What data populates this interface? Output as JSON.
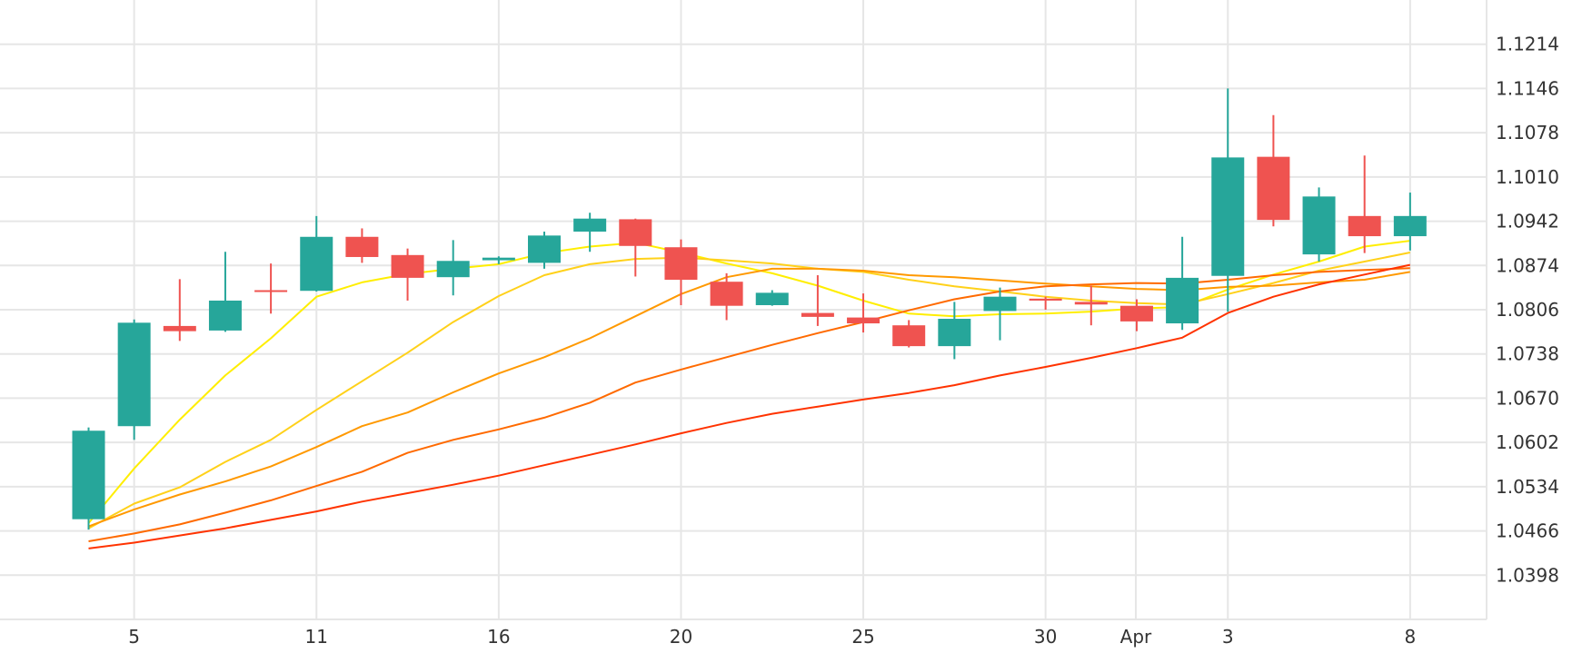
{
  "chart_data": {
    "type": "candlestick",
    "title": "",
    "xlabel": "",
    "ylabel": "",
    "ylim": [
      1.033,
      1.1282
    ],
    "grid": true,
    "x_ticks": [
      {
        "label": "5",
        "index": 1
      },
      {
        "label": "11",
        "index": 5
      },
      {
        "label": "16",
        "index": 9
      },
      {
        "label": "20",
        "index": 13
      },
      {
        "label": "25",
        "index": 17
      },
      {
        "label": "30",
        "index": 21
      },
      {
        "label": "Apr",
        "index": 22.98
      },
      {
        "label": "3",
        "index": 25
      },
      {
        "label": "8",
        "index": 29
      }
    ],
    "y_ticks": [
      "1.1214",
      "1.1146",
      "1.1078",
      "1.1010",
      "1.0942",
      "1.0874",
      "1.0806",
      "1.0738",
      "1.0670",
      "1.0602",
      "1.0534",
      "1.0466",
      "1.0398"
    ],
    "colors": {
      "up": "#26a69a",
      "down": "#ef5350",
      "ma_fast": "#ffee00",
      "ma_2": "#ffd11a",
      "ma_3": "#ff9900",
      "ma_4": "#ff6a00",
      "ma_5": "#ff3300"
    },
    "candles": [
      {
        "open": 1.0484,
        "high": 1.0625,
        "low": 1.0468,
        "close": 1.062
      },
      {
        "open": 1.0627,
        "high": 1.0791,
        "low": 1.0606,
        "close": 1.0786
      },
      {
        "open": 1.0781,
        "high": 1.0853,
        "low": 1.0758,
        "close": 1.0773
      },
      {
        "open": 1.0774,
        "high": 1.0895,
        "low": 1.0772,
        "close": 1.082
      },
      {
        "open": 1.0836,
        "high": 1.0877,
        "low": 1.08,
        "close": 1.0834
      },
      {
        "open": 1.0835,
        "high": 1.095,
        "low": 1.0834,
        "close": 1.0918
      },
      {
        "open": 1.0918,
        "high": 1.0931,
        "low": 1.0878,
        "close": 1.0887
      },
      {
        "open": 1.089,
        "high": 1.09,
        "low": 1.082,
        "close": 1.0855
      },
      {
        "open": 1.0856,
        "high": 1.0913,
        "low": 1.0828,
        "close": 1.0881
      },
      {
        "open": 1.0882,
        "high": 1.0888,
        "low": 1.0876,
        "close": 1.0886
      },
      {
        "open": 1.0878,
        "high": 1.0926,
        "low": 1.0869,
        "close": 1.092
      },
      {
        "open": 1.0926,
        "high": 1.0955,
        "low": 1.0895,
        "close": 1.0946
      },
      {
        "open": 1.0945,
        "high": 1.0946,
        "low": 1.0857,
        "close": 1.0904
      },
      {
        "open": 1.0902,
        "high": 1.0914,
        "low": 1.0813,
        "close": 1.0852
      },
      {
        "open": 1.0849,
        "high": 1.0862,
        "low": 1.079,
        "close": 1.0812
      },
      {
        "open": 1.0813,
        "high": 1.0836,
        "low": 1.0812,
        "close": 1.0832
      },
      {
        "open": 1.0801,
        "high": 1.0859,
        "low": 1.0781,
        "close": 1.0795
      },
      {
        "open": 1.0794,
        "high": 1.0831,
        "low": 1.0771,
        "close": 1.0785
      },
      {
        "open": 1.0782,
        "high": 1.079,
        "low": 1.0748,
        "close": 1.075
      },
      {
        "open": 1.075,
        "high": 1.0818,
        "low": 1.073,
        "close": 1.0792
      },
      {
        "open": 1.0804,
        "high": 1.084,
        "low": 1.0759,
        "close": 1.0826
      },
      {
        "open": 1.0823,
        "high": 1.0826,
        "low": 1.0806,
        "close": 1.082
      },
      {
        "open": 1.0818,
        "high": 1.0843,
        "low": 1.0782,
        "close": 1.0814
      },
      {
        "open": 1.0812,
        "high": 1.0822,
        "low": 1.0773,
        "close": 1.0788
      },
      {
        "open": 1.0785,
        "high": 1.0918,
        "low": 1.0775,
        "close": 1.0855
      },
      {
        "open": 1.0858,
        "high": 1.1146,
        "low": 1.0803,
        "close": 1.104
      },
      {
        "open": 1.1041,
        "high": 1.1105,
        "low": 1.0934,
        "close": 1.0944
      },
      {
        "open": 1.0891,
        "high": 1.0994,
        "low": 1.088,
        "close": 1.098
      },
      {
        "open": 1.095,
        "high": 1.1043,
        "low": 1.0893,
        "close": 1.0919
      },
      {
        "open": 1.0919,
        "high": 1.0986,
        "low": 1.0897,
        "close": 1.095
      }
    ],
    "series": [
      {
        "values": [
          1.0478,
          1.0562,
          1.0637,
          1.0705,
          1.0762,
          1.0826,
          1.0848,
          1.0861,
          1.0869,
          1.0876,
          1.0893,
          1.0903,
          1.0909,
          1.0894,
          1.0877,
          1.0862,
          1.0843,
          1.082,
          1.08,
          1.0796,
          1.0799,
          1.08,
          1.0803,
          1.0808,
          1.081,
          1.0837,
          1.086,
          1.088,
          1.0903,
          1.0912
        ]
      },
      {
        "values": [
          1.047,
          1.0508,
          1.0533,
          1.0572,
          1.0606,
          1.0652,
          1.0696,
          1.074,
          1.0787,
          1.0827,
          1.0859,
          1.0876,
          1.0884,
          1.0886,
          1.0882,
          1.0877,
          1.0869,
          1.0864,
          1.0852,
          1.0842,
          1.0834,
          1.0826,
          1.082,
          1.0816,
          1.0814,
          1.083,
          1.0847,
          1.0866,
          1.088,
          1.0894
        ]
      },
      {
        "values": [
          1.0473,
          1.0499,
          1.0522,
          1.0542,
          1.0565,
          1.0595,
          1.0627,
          1.0648,
          1.0679,
          1.0708,
          1.0733,
          1.0762,
          1.0796,
          1.083,
          1.0856,
          1.0869,
          1.0869,
          1.0866,
          1.0859,
          1.0856,
          1.0851,
          1.0846,
          1.0842,
          1.0838,
          1.0836,
          1.0841,
          1.0843,
          1.0848,
          1.0852,
          1.0864
        ]
      },
      {
        "values": [
          1.045,
          1.0462,
          1.0476,
          1.0494,
          1.0513,
          1.0535,
          1.0557,
          1.0586,
          1.0606,
          1.0622,
          1.064,
          1.0663,
          1.0694,
          1.0714,
          1.0733,
          1.0752,
          1.077,
          1.0787,
          1.0805,
          1.0822,
          1.0834,
          1.0842,
          1.0845,
          1.0847,
          1.0846,
          1.0852,
          1.0859,
          1.0864,
          1.0867,
          1.087
        ]
      },
      {
        "values": [
          1.0439,
          1.0448,
          1.0459,
          1.047,
          1.0483,
          1.0496,
          1.0511,
          1.0524,
          1.0537,
          1.0551,
          1.0567,
          1.0583,
          1.0599,
          1.0616,
          1.0632,
          1.0646,
          1.0657,
          1.0668,
          1.0678,
          1.069,
          1.0705,
          1.0718,
          1.0732,
          1.0747,
          1.0763,
          1.0801,
          1.0826,
          1.0845,
          1.086,
          1.0875
        ]
      }
    ]
  }
}
